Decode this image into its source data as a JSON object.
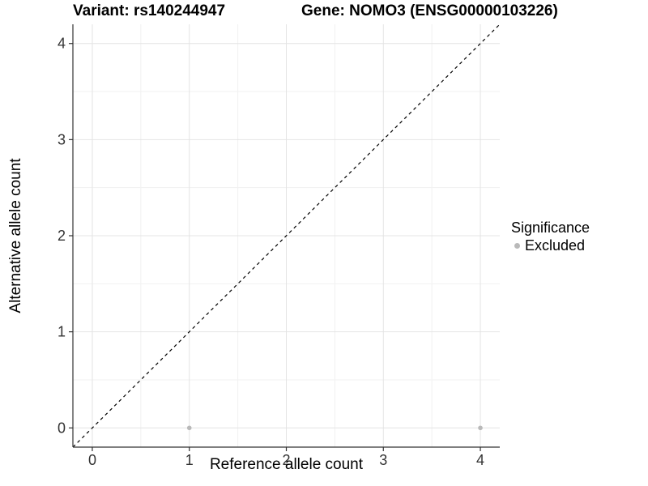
{
  "header": {
    "variant_title": "Variant: rs140244947",
    "gene_title": "Gene: NOMO3 (ENSG00000103226)"
  },
  "chart_data": {
    "type": "scatter",
    "xlabel": "Reference allele count",
    "ylabel": "Alternative allele count",
    "xlim": [
      -0.2,
      4.2
    ],
    "ylim": [
      -0.2,
      4.2
    ],
    "xticks": [
      0,
      1,
      2,
      3,
      4
    ],
    "yticks": [
      0,
      1,
      2,
      3,
      4
    ],
    "grid": {
      "major": true,
      "minor": true
    },
    "identity_line": {
      "style": "dashed",
      "from": [
        -0.2,
        -0.2
      ],
      "to": [
        4.2,
        4.2
      ]
    },
    "series": [
      {
        "name": "Excluded",
        "color": "#b9b9b9",
        "points": [
          {
            "x": 1,
            "y": 0
          },
          {
            "x": 4,
            "y": 0
          }
        ]
      }
    ],
    "legend": {
      "title": "Significance",
      "position": "right",
      "entries": [
        {
          "label": "Excluded",
          "color": "#b9b9b9"
        }
      ]
    }
  },
  "colors": {
    "background": "#ffffff",
    "grid_major": "#e4e4e4",
    "grid_minor": "#f1f1f1",
    "axis_line": "#333333",
    "tick_text": "#333333",
    "identity_line": "#000000"
  }
}
